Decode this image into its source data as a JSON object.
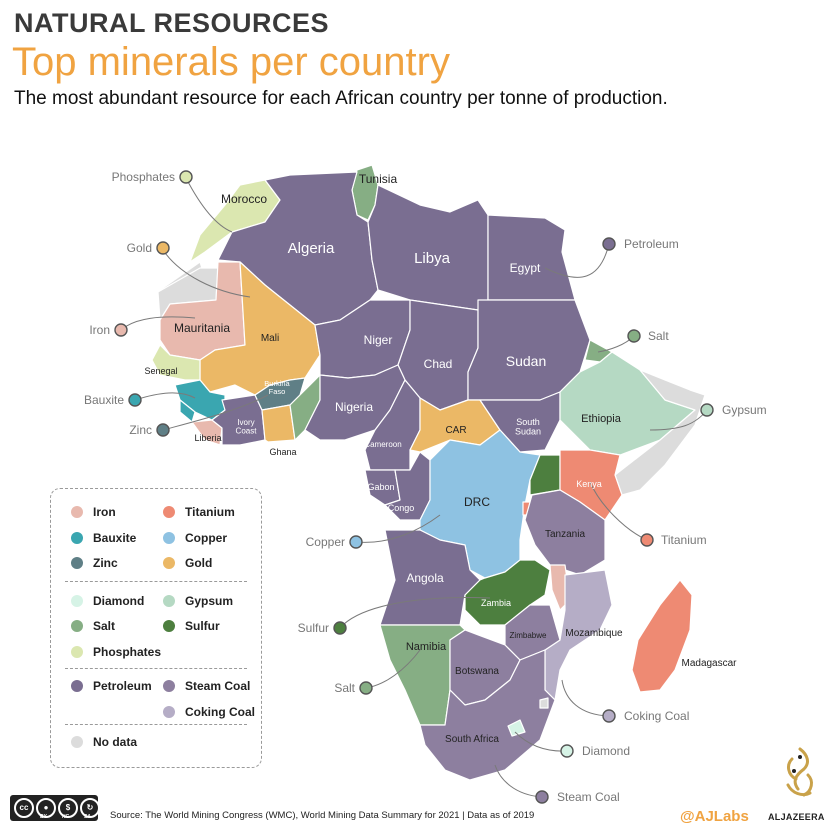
{
  "header": {
    "kicker": "NATURAL RESOURCES",
    "headline": "Top minerals per country",
    "subhead": "The most abundant resource for each African country per tonne of production."
  },
  "colors": {
    "iron": "#e8b9ae",
    "titanium": "#ee8a73",
    "bauxite": "#3aa6b0",
    "copper": "#8ec2e2",
    "zinc": "#5f7f86",
    "gold": "#ebb866",
    "diamond": "#d6f3e6",
    "gypsum": "#b5d9c3",
    "salt": "#86ae84",
    "sulfur": "#4d7f3f",
    "phosphates": "#dbe7b0",
    "petroleum": "#7a6e91",
    "steam_coal": "#8d7f9f",
    "coking_coal": "#b5adc6",
    "no_data": "#dcdcdc",
    "callout_line": "#7a7a7a"
  },
  "countries": {
    "morocco": "Morocco",
    "tunisia": "Tunisia",
    "algeria": "Algeria",
    "libya": "Libya",
    "egypt": "Egypt",
    "mauritania": "Mauritania",
    "mali": "Mali",
    "niger": "Niger",
    "chad": "Chad",
    "sudan": "Sudan",
    "senegal": "Senegal",
    "burkina_faso": "Burkina\nFaso",
    "nigeria": "Nigeria",
    "ivory_coast": "Ivory\nCoast",
    "liberia": "Liberia",
    "ghana": "Ghana",
    "car": "CAR",
    "south_sudan": "South\nSudan",
    "ethiopia": "Ethiopia",
    "cameroon": "Cameroon",
    "gabon": "Gabon",
    "congo": "Congo",
    "drc": "DRC",
    "kenya": "Kenya",
    "tanzania": "Tanzania",
    "angola": "Angola",
    "zambia": "Zambia",
    "mozambique": "Mozambique",
    "zimbabwe": "Zimbabwe",
    "namibia": "Namibia",
    "botswana": "Botswana",
    "madagascar": "Madagascar",
    "south_africa": "South Africa"
  },
  "callouts": {
    "phosphates": "Phosphates",
    "gold": "Gold",
    "iron": "Iron",
    "bauxite": "Bauxite",
    "zinc": "Zinc",
    "petroleum": "Petroleum",
    "salt_east": "Salt",
    "gypsum": "Gypsum",
    "titanium": "Titanium",
    "copper": "Copper",
    "sulfur": "Sulfur",
    "salt_south": "Salt",
    "coking_coal": "Coking Coal",
    "diamond": "Diamond",
    "steam_coal": "Steam Coal"
  },
  "legend": {
    "iron": "Iron",
    "titanium": "Titanium",
    "bauxite": "Bauxite",
    "copper": "Copper",
    "zinc": "Zinc",
    "gold": "Gold",
    "diamond": "Diamond",
    "gypsum": "Gypsum",
    "salt": "Salt",
    "sulfur": "Sulfur",
    "phosphates": "Phosphates",
    "petroleum": "Petroleum",
    "steam_coal": "Steam Coal",
    "coking_coal": "Coking Coal",
    "no_data": "No data"
  },
  "footer": {
    "source": "Source: The World Mining Congress (WMC), World Mining Data Summary for 2021 | Data as of 2019",
    "cc_by": "BY",
    "cc_nc": "NC",
    "cc_sa": "SA",
    "handle": "@AJLabs",
    "brand": "ALJAZEERA"
  }
}
